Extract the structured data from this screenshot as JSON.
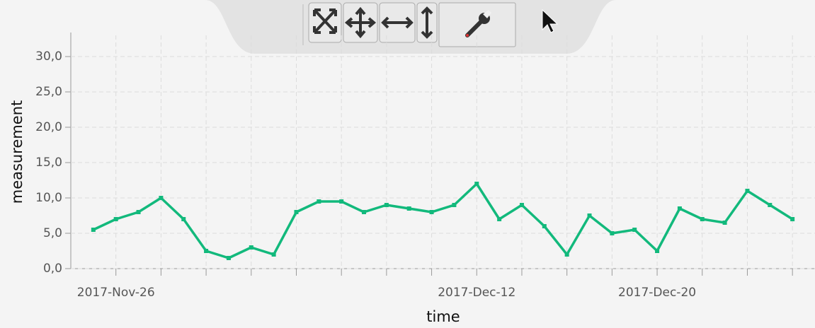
{
  "chart_data": {
    "type": "line",
    "xlabel": "time",
    "ylabel": "measurement",
    "x": [
      "2017-11-25",
      "2017-11-26",
      "2017-11-27",
      "2017-11-28",
      "2017-11-29",
      "2017-11-30",
      "2017-12-01",
      "2017-12-02",
      "2017-12-03",
      "2017-12-04",
      "2017-12-05",
      "2017-12-06",
      "2017-12-07",
      "2017-12-08",
      "2017-12-09",
      "2017-12-10",
      "2017-12-11",
      "2017-12-12",
      "2017-12-13",
      "2017-12-14",
      "2017-12-15",
      "2017-12-16",
      "2017-12-17",
      "2017-12-18",
      "2017-12-19",
      "2017-12-20",
      "2017-12-21",
      "2017-12-22",
      "2017-12-23",
      "2017-12-24",
      "2017-12-25",
      "2017-12-26"
    ],
    "series": [
      {
        "color": "#12b97c",
        "values": [
          5.5,
          7,
          8,
          10,
          7,
          2.5,
          1.5,
          3,
          2,
          8,
          9.5,
          9.5,
          8,
          9,
          8.5,
          8,
          9,
          12,
          7,
          9,
          6,
          2,
          7.5,
          5,
          5.5,
          2.5,
          8.5,
          7,
          6.5,
          11,
          9,
          7
        ]
      }
    ],
    "xlim": [
      "2017-11-24",
      "2017-12-27"
    ],
    "xticks": [
      {
        "value": "2017-11-26",
        "label": "2017-Nov-26"
      },
      {
        "value": "2017-12-12",
        "label": "2017-Dec-12"
      },
      {
        "value": "2017-12-20",
        "label": "2017-Dec-20"
      }
    ],
    "xminorticks": [
      "2017-11-28",
      "2017-11-30",
      "2017-12-02",
      "2017-12-04",
      "2017-12-06",
      "2017-12-08",
      "2017-12-10",
      "2017-12-14",
      "2017-12-16",
      "2017-12-18",
      "2017-12-22",
      "2017-12-24",
      "2017-12-26"
    ],
    "ylim": [
      0,
      33
    ],
    "yticks": [
      {
        "value": 0,
        "label": "0,0"
      },
      {
        "value": 5,
        "label": "5,0"
      },
      {
        "value": 10,
        "label": "10,0"
      },
      {
        "value": 15,
        "label": "15,0"
      },
      {
        "value": 20,
        "label": "20,0"
      },
      {
        "value": 25,
        "label": "25,0"
      },
      {
        "value": 30,
        "label": "30,0"
      }
    ],
    "grid": true
  }
}
